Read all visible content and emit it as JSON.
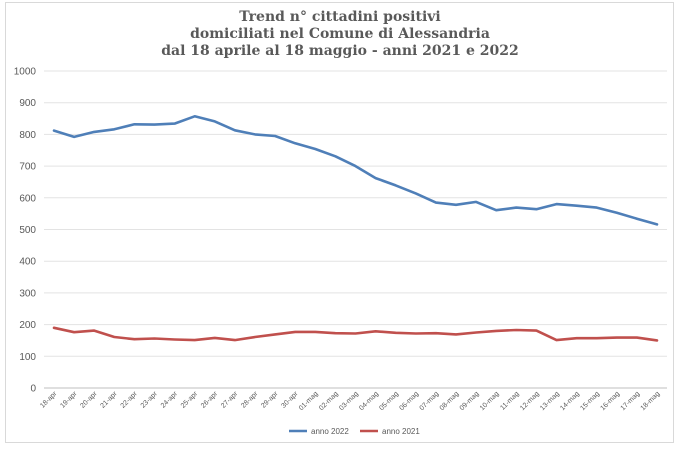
{
  "chart_data": {
    "type": "line",
    "title_lines": [
      "Trend n° cittadini positivi",
      "domiciliati nel Comune di Alessandria",
      "dal 18 aprile al 18 maggio - anni 2021 e 2022"
    ],
    "categories": [
      "18-apr",
      "19-apr",
      "20-apr",
      "21-apr",
      "22-apr",
      "23-apr",
      "24-apr",
      "25-apr",
      "26-apr",
      "27-apr",
      "28-apr",
      "29-apr",
      "30-apr",
      "01-mag",
      "02-mag",
      "03-mag",
      "04-mag",
      "05-mag",
      "06-mag",
      "07-mag",
      "08-mag",
      "09-mag",
      "10-mag",
      "11-mag",
      "12-mag",
      "13-mag",
      "14-mag",
      "15-mag",
      "16-mag",
      "17-mag",
      "18-mag"
    ],
    "yticks": [
      0,
      100,
      200,
      300,
      400,
      500,
      600,
      700,
      800,
      900,
      1000
    ],
    "ylim": [
      0,
      1000
    ],
    "grid": true,
    "legend_position": "bottom",
    "series": [
      {
        "name": "anno 2022",
        "color": "#4f7fb8",
        "values": [
          812,
          792,
          808,
          816,
          832,
          831,
          834,
          857,
          841,
          813,
          800,
          795,
          772,
          754,
          731,
          700,
          662,
          639,
          614,
          585,
          578,
          587,
          561,
          569,
          564,
          580,
          575,
          569,
          553,
          534,
          516
        ]
      },
      {
        "name": "anno 2021",
        "color": "#c0504d",
        "values": [
          190,
          176,
          181,
          161,
          154,
          156,
          153,
          151,
          158,
          151,
          161,
          169,
          177,
          177,
          173,
          172,
          179,
          174,
          172,
          173,
          169,
          175,
          180,
          183,
          181,
          151,
          157,
          157,
          159,
          159,
          150
        ]
      }
    ]
  }
}
